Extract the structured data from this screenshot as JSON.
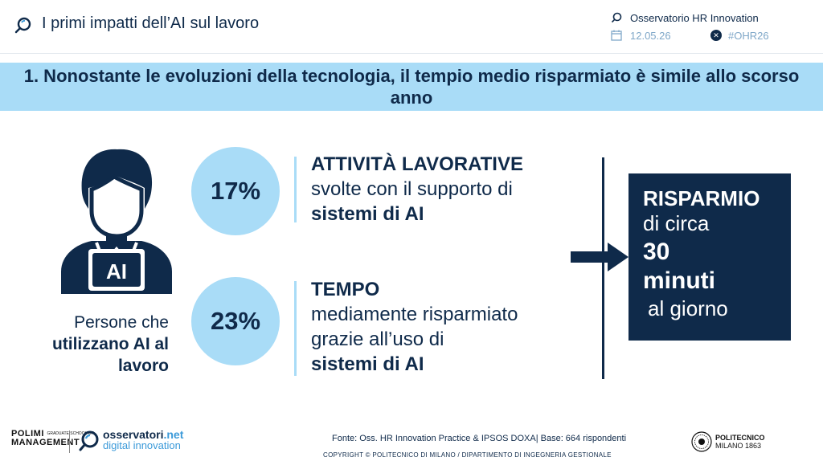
{
  "header": {
    "title": "I primi impatti dell’AI sul lavoro",
    "organizer": "Osservatorio HR Innovation",
    "date": "12.05.26",
    "hashtag": "#OHR26"
  },
  "banner": {
    "text": "1. Nonostante le evoluzioni della tecnologia, il tempio medio risparmiato è simile allo scorso anno"
  },
  "persona": {
    "icon_label": "AI",
    "line1": "Persone che",
    "line2": "utilizzano AI al",
    "line3": "lavoro"
  },
  "stats": [
    {
      "value": "17%",
      "heading": "ATTIVITÀ LAVORATIVE",
      "line1": "svolte con il supporto di",
      "line2": "sistemi di AI"
    },
    {
      "value": "23%",
      "heading": "TEMPO",
      "line1": "mediamente risparmiato",
      "line2": "grazie all’uso di",
      "line3": "sistemi di AI"
    }
  ],
  "savings": {
    "line1": "RISPARMIO",
    "line2": "di circa",
    "line3": "30",
    "line4": "minuti",
    "line5": "al giorno"
  },
  "footer": {
    "polimi_line1": "POLIMI",
    "polimi_small": "GRADUATE SCHOOL OF",
    "polimi_line2": "MANAGEMENT",
    "oss_name": "osservatori",
    "oss_net": ".net",
    "oss_sub": "digital innovation",
    "source": "Fonte: Oss. HR Innovation Practice & IPSOS DOXA| Base: 664 rispondenti",
    "copyright": "COPYRIGHT © POLITECNICO DI MILANO / DIPARTIMENTO DI INGEGNERIA GESTIONALE",
    "polito_line1": "POLITECNICO",
    "polito_line2": "MILANO 1863"
  },
  "colors": {
    "navy": "#0f2a4a",
    "light_blue": "#a9dcf7",
    "accent_blue": "#3b9ad9"
  },
  "icons": [
    "search-icon",
    "calendar-icon",
    "x-logo-icon",
    "person-ai-icon",
    "arrow-right-icon",
    "seal-icon"
  ]
}
